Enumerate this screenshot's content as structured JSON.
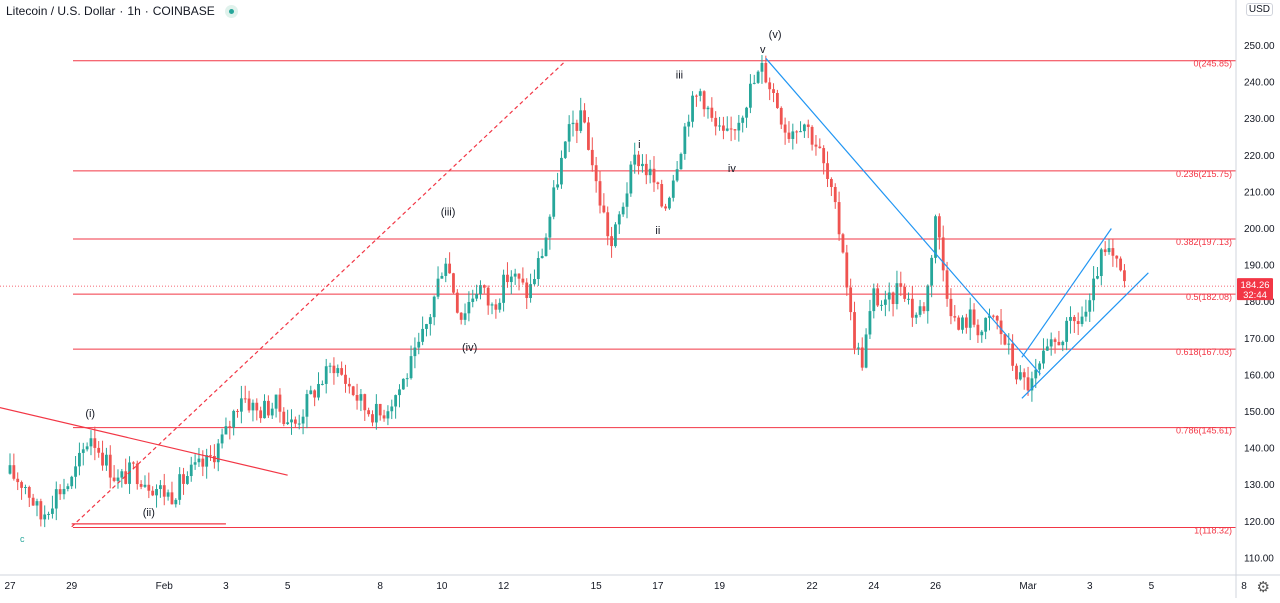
{
  "header": {
    "symbol": "Litecoin / U.S. Dollar",
    "interval": "1h",
    "exchange": "COINBASE",
    "currency_badge": "USD"
  },
  "colors": {
    "up": "#26a69a",
    "down": "#ef5350",
    "fib_line": "#f23645",
    "trend_line": "#2196f3",
    "price_tag": "#f23645"
  },
  "icons": {
    "settings": "gear-icon",
    "status": "live-dot-icon"
  },
  "chart_data": {
    "type": "candlestick",
    "title": "Litecoin / U.S. Dollar · 1h · COINBASE",
    "ylim": [
      105,
      253
    ],
    "y_ticks": [
      "110.00",
      "120.00",
      "130.00",
      "140.00",
      "150.00",
      "160.00",
      "170.00",
      "180.00",
      "190.00",
      "200.00",
      "210.00",
      "220.00",
      "230.00",
      "240.00",
      "250.00"
    ],
    "x_ticks": [
      {
        "label": "27",
        "day": 0
      },
      {
        "label": "29",
        "day": 2
      },
      {
        "label": "Feb",
        "day": 5
      },
      {
        "label": "3",
        "day": 7
      },
      {
        "label": "5",
        "day": 9
      },
      {
        "label": "8",
        "day": 12
      },
      {
        "label": "10",
        "day": 14
      },
      {
        "label": "12",
        "day": 16
      },
      {
        "label": "15",
        "day": 19
      },
      {
        "label": "17",
        "day": 21
      },
      {
        "label": "19",
        "day": 23
      },
      {
        "label": "22",
        "day": 26
      },
      {
        "label": "24",
        "day": 28
      },
      {
        "label": "26",
        "day": 30
      },
      {
        "label": "Mar",
        "day": 33
      },
      {
        "label": "3",
        "day": 35
      },
      {
        "label": "5",
        "day": 37
      },
      {
        "label": "8",
        "day": 40
      }
    ],
    "last_price": {
      "value": 184.26,
      "label": "184.26",
      "countdown": "32:44"
    },
    "fib_levels": [
      {
        "ratio": "0",
        "price": 245.85,
        "label": "0(245.85)"
      },
      {
        "ratio": "0.236",
        "price": 215.75,
        "label": "0.236(215.75)"
      },
      {
        "ratio": "0.382",
        "price": 197.13,
        "label": "0.382(197.13)"
      },
      {
        "ratio": "0.5",
        "price": 182.08,
        "label": "0.5(182.08)"
      },
      {
        "ratio": "0.618",
        "price": 167.03,
        "label": "0.618(167.03)"
      },
      {
        "ratio": "0.786",
        "price": 145.61,
        "label": "0.786(145.61)"
      },
      {
        "ratio": "1",
        "price": 118.32,
        "label": "1(118.32)"
      }
    ],
    "wave_labels": [
      {
        "text": "(i)",
        "day": 2.6,
        "price": 148.5
      },
      {
        "text": "(ii)",
        "day": 4.5,
        "price": 121.5
      },
      {
        "text": "(iii)",
        "day": 14.2,
        "price": 203.5
      },
      {
        "text": "(iv)",
        "day": 14.9,
        "price": 166.5
      },
      {
        "text": "(v)",
        "day": 24.8,
        "price": 252.0
      },
      {
        "text": "i",
        "day": 20.4,
        "price": 222.0
      },
      {
        "text": "ii",
        "day": 21.0,
        "price": 198.5
      },
      {
        "text": "iii",
        "day": 21.7,
        "price": 241.0
      },
      {
        "text": "iv",
        "day": 23.4,
        "price": 215.5
      },
      {
        "text": "v",
        "day": 24.4,
        "price": 248.0
      }
    ],
    "series": [
      {
        "name": "close_path",
        "points": [
          [
            0,
            133
          ],
          [
            0.5,
            130
          ],
          [
            1,
            121
          ],
          [
            1.5,
            128
          ],
          [
            2,
            131
          ],
          [
            2.6,
            144
          ],
          [
            3,
            138
          ],
          [
            3.5,
            131
          ],
          [
            4,
            134
          ],
          [
            4.6,
            130
          ],
          [
            5.2,
            127
          ],
          [
            5.8,
            133
          ],
          [
            6.4,
            136
          ],
          [
            7,
            144
          ],
          [
            7.5,
            155
          ],
          [
            8,
            150
          ],
          [
            8.6,
            152
          ],
          [
            9.2,
            146
          ],
          [
            9.8,
            155
          ],
          [
            10.5,
            163
          ],
          [
            11,
            157
          ],
          [
            11.5,
            151
          ],
          [
            12,
            149
          ],
          [
            12.6,
            156
          ],
          [
            13.2,
            166
          ],
          [
            13.6,
            176
          ],
          [
            14.1,
            193
          ],
          [
            14.6,
            176
          ],
          [
            15.2,
            185
          ],
          [
            15.6,
            178
          ],
          [
            16.2,
            188
          ],
          [
            16.8,
            182
          ],
          [
            17.3,
            195
          ],
          [
            17.8,
            216
          ],
          [
            18.2,
            228
          ],
          [
            18.6,
            230
          ],
          [
            19,
            212
          ],
          [
            19.5,
            195
          ],
          [
            19.9,
            208
          ],
          [
            20.3,
            220
          ],
          [
            20.8,
            214
          ],
          [
            21.2,
            205
          ],
          [
            21.6,
            218
          ],
          [
            22,
            232
          ],
          [
            22.4,
            238
          ],
          [
            22.8,
            228
          ],
          [
            23.2,
            224
          ],
          [
            23.6,
            230
          ],
          [
            24,
            238
          ],
          [
            24.4,
            244
          ],
          [
            24.8,
            236
          ],
          [
            25.2,
            226
          ],
          [
            25.7,
            230
          ],
          [
            26.2,
            222
          ],
          [
            26.6,
            210
          ],
          [
            27,
            195
          ],
          [
            27.3,
            172
          ],
          [
            27.6,
            163
          ],
          [
            28,
            182
          ],
          [
            28.4,
            178
          ],
          [
            28.9,
            186
          ],
          [
            29.3,
            176
          ],
          [
            29.7,
            180
          ],
          [
            30,
            204
          ],
          [
            30.3,
            186
          ],
          [
            30.7,
            172
          ],
          [
            31.1,
            176
          ],
          [
            31.5,
            172
          ],
          [
            31.9,
            176
          ],
          [
            32.3,
            168
          ],
          [
            32.7,
            159
          ],
          [
            33.1,
            157
          ],
          [
            33.5,
            164
          ],
          [
            34,
            170
          ],
          [
            34.5,
            174
          ],
          [
            35,
            178
          ],
          [
            35.3,
            191
          ],
          [
            35.6,
            193
          ],
          [
            35.9,
            189
          ],
          [
            36.2,
            184.26
          ]
        ]
      }
    ],
    "trend_lines": [
      {
        "name": "(iii)-(v) dashed channel",
        "style": "dashed",
        "color": "#f23645",
        "from": [
          2,
          118.5
        ],
        "to": [
          18.0,
          245.7
        ]
      },
      {
        "name": "wave (i)-(ii) line",
        "style": "solid",
        "color": "#f23645",
        "from": [
          -1.2,
          152.8
        ],
        "to": [
          9.0,
          132.6
        ]
      },
      {
        "name": "wave (ii) base",
        "style": "solid",
        "color": "#f23645",
        "from": [
          2.0,
          119.3
        ],
        "to": [
          7.0,
          119.3
        ]
      },
      {
        "name": "downtrend line",
        "style": "solid",
        "color": "#2196f3",
        "from": [
          24.5,
          246.5
        ],
        "to": [
          33.4,
          160.2
        ]
      },
      {
        "name": "channel upper",
        "style": "solid",
        "color": "#2196f3",
        "from": [
          32.8,
          164.8
        ],
        "to": [
          35.7,
          200.0
        ]
      },
      {
        "name": "channel lower",
        "style": "solid",
        "color": "#2196f3",
        "from": [
          32.8,
          153.6
        ],
        "to": [
          36.9,
          187.9
        ]
      }
    ]
  }
}
